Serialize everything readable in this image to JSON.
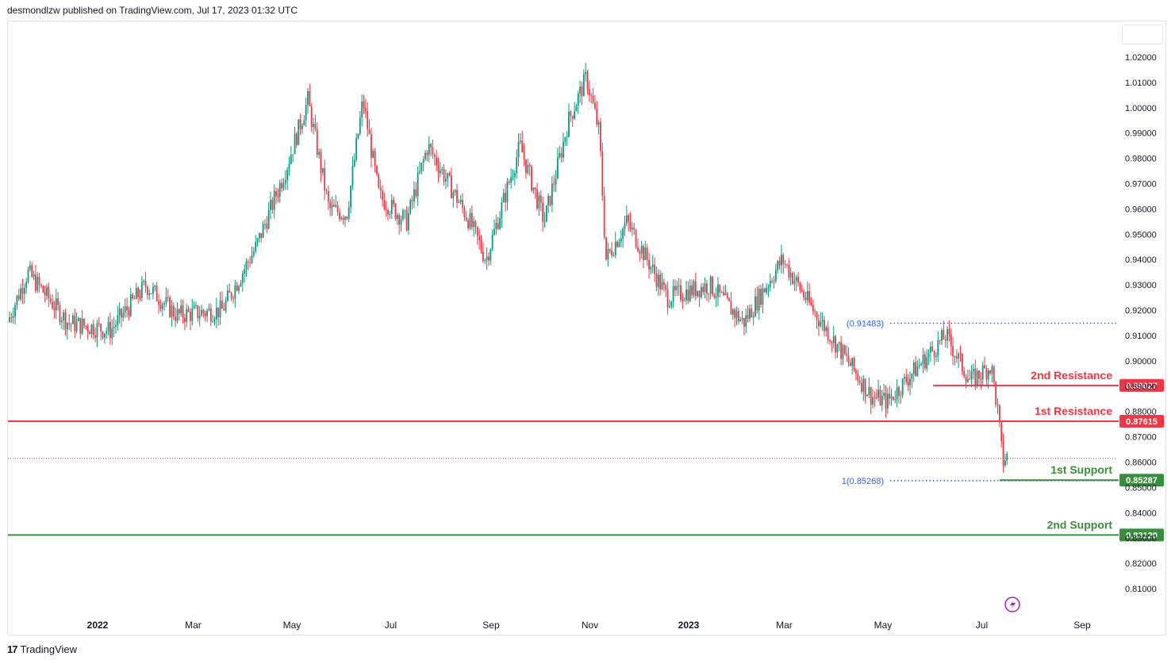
{
  "header": {
    "published": "desmondlzw published on TradingView.com, Jul 17, 2023 01:32 UTC"
  },
  "footer": {
    "brand": "TradingView"
  },
  "colors": {
    "up": "#089981",
    "down": "#f23645",
    "resistance": "#f23645",
    "support": "#388e3c",
    "fib": "#2962ff",
    "grid": "#f0f3fa"
  },
  "chart_data": {
    "type": "candlestick",
    "title": "",
    "xlabel": "",
    "ylabel": "",
    "ylim": [
      0.8,
      1.025
    ],
    "y_ticks": [
      "1.02000",
      "1.01000",
      "1.00000",
      "0.99000",
      "0.98000",
      "0.97000",
      "0.96000",
      "0.95000",
      "0.94000",
      "0.93000",
      "0.92000",
      "0.91000",
      "0.90000",
      "0.89000",
      "0.88000",
      "0.87000",
      "0.86000",
      "0.85000",
      "0.84000",
      "0.83000",
      "0.82000",
      "0.81000"
    ],
    "x_ticks": [
      {
        "label": "2022",
        "date": "2022-01-01",
        "bold": true
      },
      {
        "label": "Mar",
        "date": "2022-03-01"
      },
      {
        "label": "May",
        "date": "2022-05-01"
      },
      {
        "label": "Jul",
        "date": "2022-07-01"
      },
      {
        "label": "Sep",
        "date": "2022-09-01"
      },
      {
        "label": "Nov",
        "date": "2022-11-01"
      },
      {
        "label": "2023",
        "date": "2023-01-01",
        "bold": true
      },
      {
        "label": "Mar",
        "date": "2023-03-01"
      },
      {
        "label": "May",
        "date": "2023-05-01"
      },
      {
        "label": "Jul",
        "date": "2023-07-01"
      },
      {
        "label": "Sep",
        "date": "2023-09-01"
      }
    ],
    "price_path": [
      [
        "2021-11-01",
        0.905
      ],
      [
        "2021-11-20",
        0.935
      ],
      [
        "2021-12-15",
        0.915
      ],
      [
        "2022-01-10",
        0.912
      ],
      [
        "2022-02-01",
        0.93
      ],
      [
        "2022-02-20",
        0.918
      ],
      [
        "2022-03-20",
        0.92
      ],
      [
        "2022-04-10",
        0.945
      ],
      [
        "2022-04-28",
        0.975
      ],
      [
        "2022-05-12",
        1.003
      ],
      [
        "2022-05-25",
        0.96
      ],
      [
        "2022-06-05",
        0.958
      ],
      [
        "2022-06-15",
        1.003
      ],
      [
        "2022-06-25",
        0.965
      ],
      [
        "2022-07-12",
        0.955
      ],
      [
        "2022-07-25",
        0.985
      ],
      [
        "2022-08-20",
        0.955
      ],
      [
        "2022-08-30",
        0.94
      ],
      [
        "2022-09-20",
        0.985
      ],
      [
        "2022-10-05",
        0.955
      ],
      [
        "2022-10-20",
        0.995
      ],
      [
        "2022-10-31",
        1.012
      ],
      [
        "2022-11-08",
        0.99
      ],
      [
        "2022-11-12",
        0.94
      ],
      [
        "2022-11-25",
        0.955
      ],
      [
        "2022-12-20",
        0.925
      ],
      [
        "2023-01-15",
        0.93
      ],
      [
        "2023-02-05",
        0.915
      ],
      [
        "2023-03-01",
        0.94
      ],
      [
        "2023-03-20",
        0.92
      ],
      [
        "2023-04-05",
        0.905
      ],
      [
        "2023-04-25",
        0.886
      ],
      [
        "2023-05-05",
        0.884
      ],
      [
        "2023-05-20",
        0.895
      ],
      [
        "2023-06-10",
        0.91
      ],
      [
        "2023-06-25",
        0.892
      ],
      [
        "2023-07-08",
        0.898
      ],
      [
        "2023-07-12",
        0.88
      ],
      [
        "2023-07-15",
        0.86
      ],
      [
        "2023-07-17",
        0.862
      ]
    ],
    "levels": [
      {
        "label": "2nd Resistance",
        "value": "0.89027",
        "type": "resistance",
        "start": "2023-06-01"
      },
      {
        "label": "1st Resistance",
        "value": "0.87615",
        "type": "resistance",
        "start": "full"
      },
      {
        "label": "1st Support",
        "value": "0.85287",
        "type": "support",
        "start": "2023-07-12"
      },
      {
        "label": "2nd Support",
        "value": "0.83120",
        "type": "support",
        "start": "full"
      }
    ],
    "fib_levels": [
      {
        "label": "(0.91483)",
        "value": 0.91483,
        "start": "2023-03-15"
      },
      {
        "label": "1(0.85268)",
        "value": 0.85268,
        "start": "2023-03-15"
      }
    ],
    "current_price": 0.8615
  }
}
